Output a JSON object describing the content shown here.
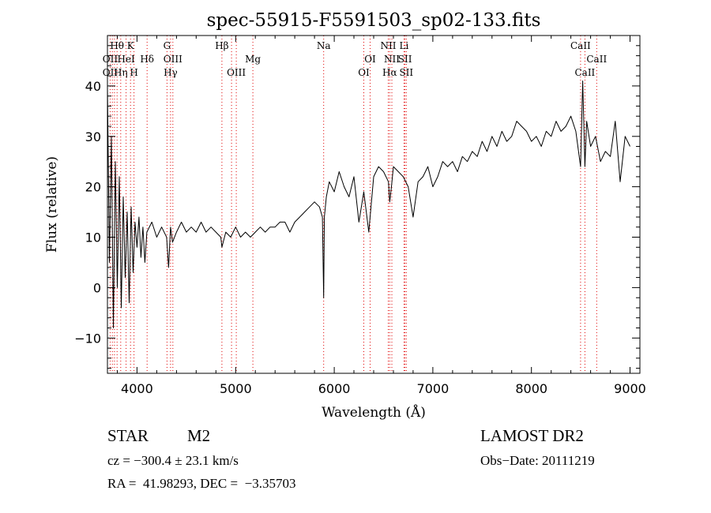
{
  "chart_data": {
    "type": "line",
    "title": "spec-55915-F5591503_sp02-133.fits",
    "xlabel": "Wavelength (Å)",
    "ylabel": "Flux (relative)",
    "xlim": [
      3700,
      9100
    ],
    "ylim": [
      -17,
      50
    ],
    "xticks": [
      4000,
      5000,
      6000,
      7000,
      8000,
      9000
    ],
    "yticks": [
      -10,
      0,
      10,
      20,
      30,
      40
    ],
    "grid": false,
    "series": [
      {
        "x": [
          3700,
          3720,
          3740,
          3760,
          3780,
          3800,
          3820,
          3840,
          3860,
          3880,
          3900,
          3920,
          3940,
          3960,
          3980,
          4000,
          4020,
          4040,
          4060,
          4080,
          4100,
          4150,
          4200,
          4250,
          4300,
          4320,
          4340,
          4360,
          4400,
          4450,
          4500,
          4550,
          4600,
          4650,
          4700,
          4750,
          4800,
          4850,
          4861,
          4900,
          4950,
          5000,
          5050,
          5100,
          5150,
          5200,
          5250,
          5300,
          5350,
          5400,
          5450,
          5500,
          5550,
          5600,
          5650,
          5700,
          5750,
          5800,
          5850,
          5880,
          5893,
          5900,
          5920,
          5950,
          6000,
          6050,
          6100,
          6150,
          6200,
          6250,
          6300,
          6350,
          6400,
          6450,
          6500,
          6550,
          6563,
          6580,
          6600,
          6650,
          6700,
          6750,
          6800,
          6850,
          6900,
          6950,
          7000,
          7050,
          7100,
          7150,
          7200,
          7250,
          7300,
          7350,
          7400,
          7450,
          7500,
          7550,
          7600,
          7650,
          7700,
          7750,
          7800,
          7850,
          7900,
          7950,
          8000,
          8050,
          8100,
          8150,
          8200,
          8250,
          8300,
          8350,
          8400,
          8450,
          8498,
          8520,
          8542,
          8560,
          8600,
          8650,
          8700,
          8750,
          8800,
          8850,
          8900,
          8950,
          9000
        ],
        "values": [
          40,
          5,
          30,
          -8,
          25,
          0,
          22,
          -4,
          18,
          2,
          15,
          -3,
          16,
          3,
          13,
          8,
          14,
          6,
          12,
          5,
          11,
          13,
          10,
          12,
          10,
          4,
          12,
          9,
          11,
          13,
          11,
          12,
          11,
          13,
          11,
          12,
          11,
          10,
          8,
          11,
          10,
          12,
          10,
          11,
          10,
          11,
          12,
          11,
          12,
          12,
          13,
          13,
          11,
          13,
          14,
          15,
          16,
          17,
          16,
          14,
          -2,
          14,
          18,
          21,
          19,
          23,
          20,
          18,
          22,
          13,
          19,
          11,
          22,
          24,
          23,
          21,
          17,
          20,
          24,
          23,
          22,
          20,
          14,
          21,
          22,
          24,
          20,
          22,
          25,
          24,
          25,
          23,
          26,
          25,
          27,
          26,
          29,
          27,
          30,
          28,
          31,
          29,
          30,
          33,
          32,
          31,
          29,
          30,
          28,
          31,
          30,
          33,
          31,
          32,
          34,
          31,
          24,
          41,
          24,
          33,
          28,
          30,
          25,
          27,
          26,
          33,
          21,
          30,
          28
        ]
      }
    ],
    "line_ids": [
      {
        "label": "Hθ",
        "x": 3798,
        "row": 1
      },
      {
        "label": "K",
        "x": 3934,
        "row": 1
      },
      {
        "label": "G",
        "x": 4304,
        "row": 1
      },
      {
        "label": "Hβ",
        "x": 4861,
        "row": 1
      },
      {
        "label": "Na",
        "x": 5893,
        "row": 1
      },
      {
        "label": "NII",
        "x": 6548,
        "row": 1
      },
      {
        "label": "Li",
        "x": 6708,
        "row": 1
      },
      {
        "label": "CaII",
        "x": 8498,
        "row": 1
      },
      {
        "label": "OII",
        "x": 3727,
        "row": 2
      },
      {
        "label": "HeI",
        "x": 3889,
        "row": 2
      },
      {
        "label": "Hδ",
        "x": 4102,
        "row": 2
      },
      {
        "label": "OIII",
        "x": 4363,
        "row": 2
      },
      {
        "label": "Mg",
        "x": 5175,
        "row": 2
      },
      {
        "label": "OI",
        "x": 6364,
        "row": 2
      },
      {
        "label": "NII",
        "x": 6584,
        "row": 2
      },
      {
        "label": "SII",
        "x": 6717,
        "row": 2
      },
      {
        "label": "CaII",
        "x": 8662,
        "row": 2
      },
      {
        "label": "OII",
        "x": 3727,
        "row": 3
      },
      {
        "label": "Hη",
        "x": 3835,
        "row": 3
      },
      {
        "label": "H",
        "x": 3969,
        "row": 3
      },
      {
        "label": "Hγ",
        "x": 4340,
        "row": 3
      },
      {
        "label": "OIII",
        "x": 5007,
        "row": 3
      },
      {
        "label": "OI",
        "x": 6300,
        "row": 3
      },
      {
        "label": "Hα",
        "x": 6563,
        "row": 3
      },
      {
        "label": "SII",
        "x": 6731,
        "row": 3
      },
      {
        "label": "CaII",
        "x": 8542,
        "row": 3
      }
    ],
    "line_marker_wavelengths": [
      3727,
      3750,
      3771,
      3798,
      3835,
      3889,
      3934,
      3969,
      4102,
      4304,
      4340,
      4363,
      4861,
      4959,
      5007,
      5175,
      5893,
      6300,
      6364,
      6548,
      6563,
      6584,
      6708,
      6717,
      6731,
      8498,
      8542,
      8662
    ]
  },
  "info": {
    "class": "STAR",
    "subclass": "M2",
    "survey": "LAMOST DR2",
    "cz": "cz = −300.4 ± 23.1 km/s",
    "obsdate": "Obs−Date: 20111219",
    "radec": "RA =  41.98293, DEC =  −3.35703"
  },
  "colors": {
    "spectrum": "#000000",
    "lines": "#e00000",
    "axes": "#000000"
  }
}
